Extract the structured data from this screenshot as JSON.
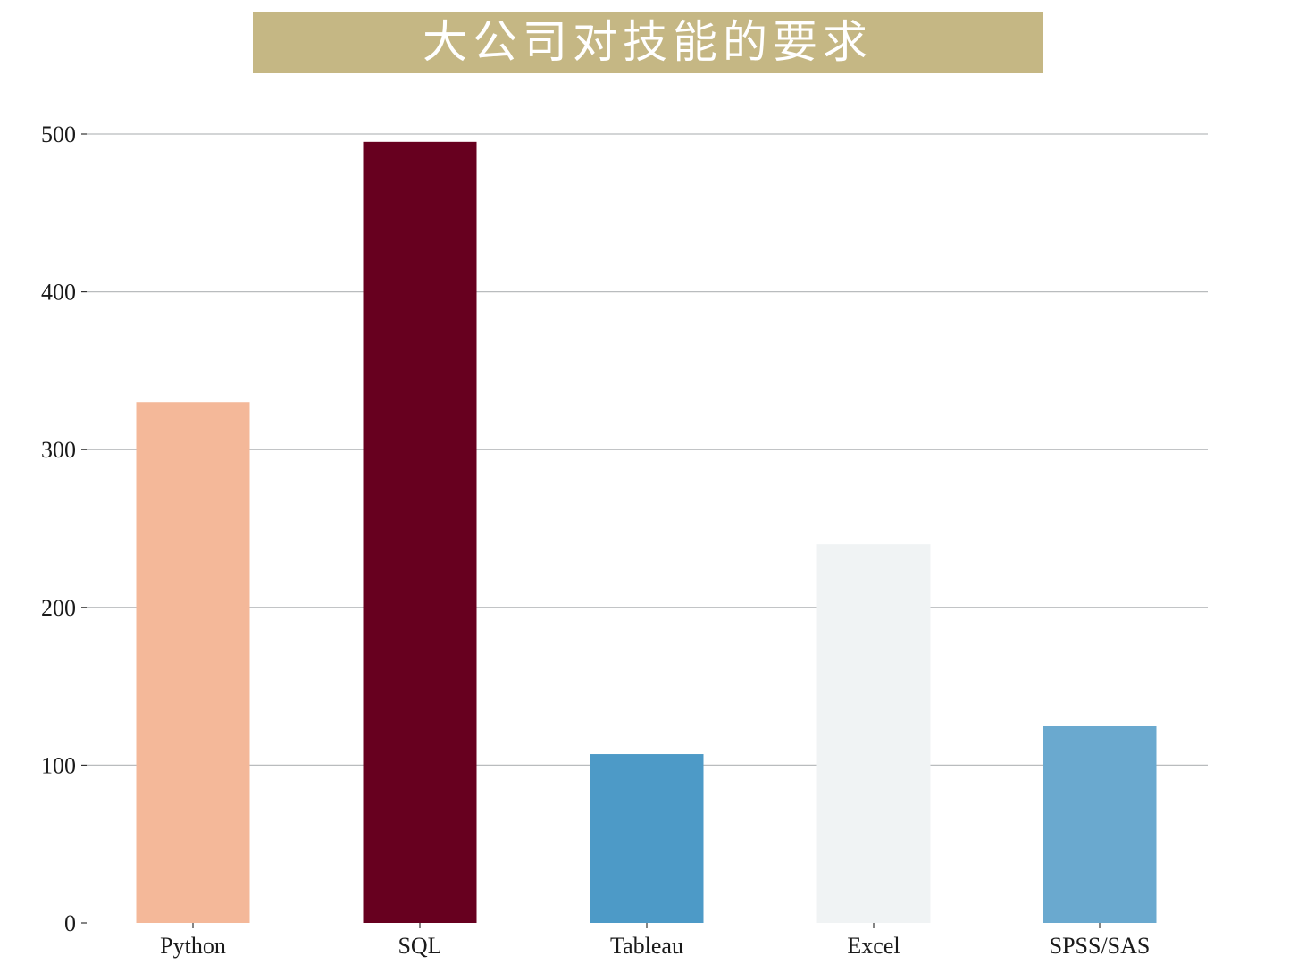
{
  "chart_data": {
    "type": "bar",
    "title": "大公司对技能的要求",
    "categories": [
      "Python",
      "SQL",
      "Tableau",
      "Excel",
      "SPSS/SAS"
    ],
    "values": [
      330,
      495,
      107,
      240,
      125
    ],
    "colors": [
      "#f4b899",
      "#67001f",
      "#4d9ac7",
      "#f0f3f4",
      "#6aa9cf"
    ],
    "title_bg_color": "#c5b784",
    "yticks": [
      0,
      100,
      200,
      300,
      400,
      500
    ],
    "ylim": [
      0,
      500
    ],
    "grid": "horizontal",
    "xlabel": "",
    "ylabel": ""
  }
}
